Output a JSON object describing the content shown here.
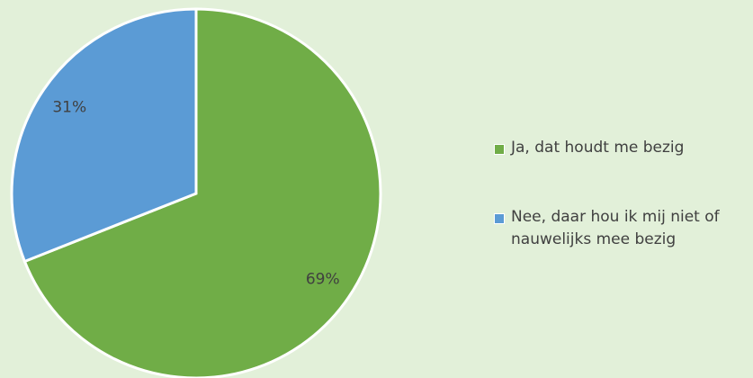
{
  "chart_data": {
    "type": "pie",
    "series": [
      {
        "name": "Ja, dat houdt me bezig",
        "color": "#70ad47",
        "values": [
          69
        ],
        "value_labels": [
          "69%"
        ]
      },
      {
        "name": "Nee, daar hou ik mij niet of nauwelijks mee bezig",
        "color": "#5b9bd5",
        "values": [
          31
        ],
        "value_labels": [
          "31%"
        ]
      }
    ],
    "legend": "right"
  }
}
